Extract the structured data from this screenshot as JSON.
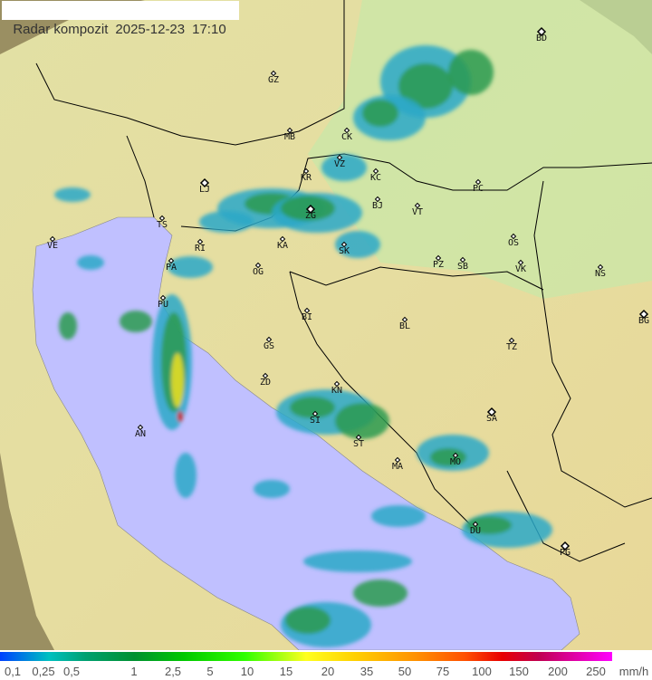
{
  "header": {
    "title": "Radar kompozit",
    "date": "2025-12-23",
    "time": "17:10"
  },
  "legend": {
    "labels": [
      "0,1",
      "0,25",
      "0,5",
      "1",
      "2,5",
      "5",
      "10",
      "15",
      "20",
      "35",
      "50",
      "75",
      "100",
      "150",
      "200",
      "250"
    ],
    "unit": "mm/h"
  },
  "colors": {
    "sea": "#c0c0ff",
    "land": "#e8e8a8",
    "outside_coverage": "#a89a70",
    "rain_light": "#2aa8c8",
    "rain_medium": "#2a9a50",
    "rain_heavy": "#f0e020",
    "rain_extreme": "#e00000"
  },
  "cities": [
    "GZ",
    "MB",
    "CK",
    "VZ",
    "KR",
    "KC",
    "LJ",
    "ZG",
    "BJ",
    "VT",
    "PC",
    "BD",
    "TS",
    "VE",
    "RI",
    "KA",
    "SK",
    "OS",
    "VK",
    "NS",
    "PA",
    "OG",
    "PZ",
    "SB",
    "PU",
    "BI",
    "BL",
    "BG",
    "GS",
    "TZ",
    "ZD",
    "KN",
    "SA",
    "SI",
    "ST",
    "AN",
    "MA",
    "MO",
    "DU",
    "PG"
  ]
}
